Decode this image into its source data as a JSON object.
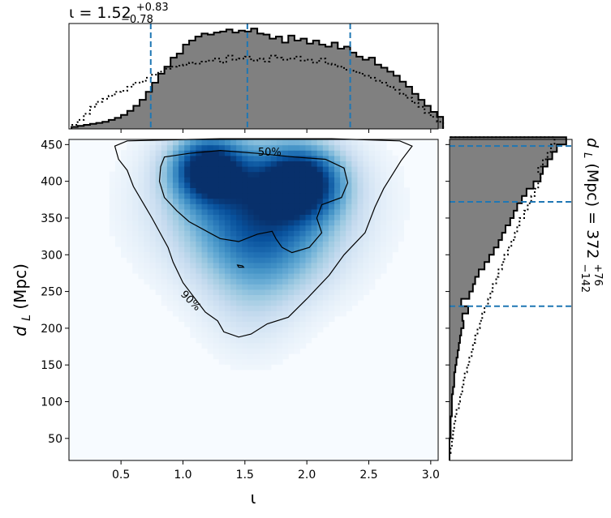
{
  "chart_data": [
    {
      "id": "joint",
      "type": "heatmap",
      "xlabel": "ι",
      "ylabel_main": "d",
      "ylabel_sub": "L",
      "ylabel_unit": " (Mpc)",
      "xlim": [
        0.08,
        3.06
      ],
      "ylim": [
        20,
        457
      ],
      "xticks": [
        0.5,
        1.0,
        1.5,
        2.0,
        2.5,
        3.0
      ],
      "xtick_labels": [
        "0.5",
        "1.0",
        "1.5",
        "2.0",
        "2.5",
        "3.0"
      ],
      "yticks": [
        50,
        100,
        150,
        200,
        250,
        300,
        350,
        400,
        450
      ],
      "ytick_labels": [
        "50",
        "100",
        "150",
        "200",
        "250",
        "300",
        "350",
        "400",
        "450"
      ],
      "colormap": "Blues",
      "density_blobs": [
        {
          "x": 1.2,
          "y": 418,
          "sx": 0.2,
          "sy": 30,
          "w": 1.0
        },
        {
          "x": 1.95,
          "y": 400,
          "sx": 0.22,
          "sy": 32,
          "w": 0.95
        },
        {
          "x": 1.6,
          "y": 370,
          "sx": 0.45,
          "sy": 55,
          "w": 0.75
        },
        {
          "x": 1.65,
          "y": 300,
          "sx": 0.35,
          "sy": 45,
          "w": 0.35
        },
        {
          "x": 1.55,
          "y": 230,
          "sx": 0.25,
          "sy": 45,
          "w": 0.12
        }
      ],
      "contours": [
        {
          "label": "50%",
          "points": [
            [
              1.05,
              438
            ],
            [
              1.3,
              442
            ],
            [
              1.6,
              438
            ],
            [
              1.9,
              433
            ],
            [
              2.15,
              430
            ],
            [
              2.3,
              418
            ],
            [
              2.33,
              398
            ],
            [
              2.28,
              378
            ],
            [
              2.12,
              368
            ],
            [
              2.08,
              350
            ],
            [
              2.12,
              330
            ],
            [
              2.02,
              310
            ],
            [
              1.88,
              303
            ],
            [
              1.8,
              310
            ],
            [
              1.75,
              322
            ],
            [
              1.72,
              332
            ],
            [
              1.6,
              328
            ],
            [
              1.45,
              318
            ],
            [
              1.3,
              322
            ],
            [
              1.05,
              345
            ],
            [
              0.95,
              360
            ],
            [
              0.85,
              378
            ],
            [
              0.81,
              400
            ],
            [
              0.82,
              420
            ],
            [
              0.85,
              433
            ]
          ]
        },
        {
          "label": "90%",
          "points": [
            [
              0.45,
              448
            ],
            [
              0.55,
              455
            ],
            [
              1.3,
              458
            ],
            [
              2.2,
              458
            ],
            [
              2.75,
              455
            ],
            [
              2.85,
              448
            ],
            [
              2.76,
              428
            ],
            [
              2.62,
              390
            ],
            [
              2.55,
              365
            ],
            [
              2.47,
              330
            ],
            [
              2.3,
              300
            ],
            [
              2.18,
              272
            ],
            [
              2.0,
              240
            ],
            [
              1.85,
              215
            ],
            [
              1.68,
              206
            ],
            [
              1.55,
              192
            ],
            [
              1.45,
              188
            ],
            [
              1.33,
              195
            ],
            [
              1.28,
              210
            ],
            [
              1.18,
              222
            ],
            [
              1.0,
              262
            ],
            [
              0.92,
              290
            ],
            [
              0.88,
              310
            ],
            [
              0.75,
              350
            ],
            [
              0.6,
              393
            ],
            [
              0.55,
              415
            ],
            [
              0.48,
              430
            ]
          ]
        },
        {
          "label": "",
          "points": [
            [
              1.44,
              286
            ],
            [
              1.48,
              285
            ],
            [
              1.49,
              283
            ],
            [
              1.45,
              283
            ]
          ]
        }
      ],
      "contour_label_positions": {
        "50%": [
          1.7,
          439
        ],
        "90%": [
          1.06,
          237
        ]
      },
      "contour_label_rotations": {
        "50%": 0,
        "90%": 45
      }
    },
    {
      "id": "iota-marginal",
      "type": "histogram",
      "title_value": "ι = 1.52",
      "title_plus": "+0.83",
      "title_minus": "−0.78",
      "xlim": [
        0.08,
        3.06
      ],
      "ylim": [
        0,
        1.05
      ],
      "bins_start": 0.1,
      "bin_width": 0.05,
      "posterior": [
        0.02,
        0.03,
        0.04,
        0.05,
        0.06,
        0.07,
        0.09,
        0.11,
        0.14,
        0.18,
        0.23,
        0.29,
        0.37,
        0.46,
        0.55,
        0.62,
        0.71,
        0.75,
        0.84,
        0.88,
        0.92,
        0.95,
        0.94,
        0.96,
        0.97,
        0.99,
        0.96,
        0.98,
        0.97,
        1.0,
        0.95,
        0.94,
        0.9,
        0.92,
        0.86,
        0.93,
        0.88,
        0.9,
        0.85,
        0.88,
        0.84,
        0.82,
        0.86,
        0.8,
        0.82,
        0.76,
        0.72,
        0.69,
        0.71,
        0.64,
        0.61,
        0.57,
        0.53,
        0.47,
        0.42,
        0.35,
        0.29,
        0.23,
        0.17,
        0.12
      ],
      "prior": [
        0.04,
        0.09,
        0.15,
        0.22,
        0.27,
        0.3,
        0.33,
        0.37,
        0.38,
        0.42,
        0.46,
        0.47,
        0.51,
        0.54,
        0.57,
        0.6,
        0.62,
        0.63,
        0.64,
        0.66,
        0.65,
        0.67,
        0.68,
        0.7,
        0.66,
        0.73,
        0.69,
        0.7,
        0.72,
        0.68,
        0.7,
        0.67,
        0.73,
        0.71,
        0.69,
        0.7,
        0.72,
        0.68,
        0.69,
        0.66,
        0.7,
        0.65,
        0.64,
        0.62,
        0.59,
        0.58,
        0.56,
        0.53,
        0.51,
        0.48,
        0.46,
        0.42,
        0.39,
        0.35,
        0.31,
        0.26,
        0.22,
        0.16,
        0.12,
        0.07
      ],
      "quantile_lines": [
        0.74,
        1.52,
        2.35
      ]
    },
    {
      "id": "distance-marginal",
      "type": "histogram",
      "orientation": "horizontal",
      "label_main": "d",
      "label_sub": "L",
      "label_rest": " (Mpc) = 372",
      "label_plus": "+76",
      "label_minus": "−142",
      "ylim": [
        20,
        457
      ],
      "xlim": [
        0,
        1.05
      ],
      "bins_start": 20,
      "bin_width": 10,
      "posterior": [
        0.0,
        0.0,
        0.0,
        0.01,
        0.01,
        0.01,
        0.02,
        0.02,
        0.02,
        0.03,
        0.04,
        0.04,
        0.05,
        0.06,
        0.07,
        0.08,
        0.09,
        0.1,
        0.12,
        0.11,
        0.16,
        0.1,
        0.17,
        0.2,
        0.22,
        0.25,
        0.3,
        0.34,
        0.38,
        0.42,
        0.45,
        0.48,
        0.52,
        0.55,
        0.58,
        0.62,
        0.66,
        0.72,
        0.78,
        0.8,
        0.84,
        0.88,
        0.92,
        1.0
      ],
      "prior": [
        0.0,
        0.01,
        0.02,
        0.03,
        0.04,
        0.05,
        0.06,
        0.08,
        0.09,
        0.11,
        0.12,
        0.13,
        0.15,
        0.17,
        0.19,
        0.2,
        0.22,
        0.24,
        0.26,
        0.28,
        0.3,
        0.33,
        0.35,
        0.37,
        0.4,
        0.42,
        0.45,
        0.47,
        0.5,
        0.53,
        0.56,
        0.58,
        0.6,
        0.64,
        0.67,
        0.7,
        0.73,
        0.76,
        0.78,
        0.76,
        0.8,
        0.84,
        0.87,
        0.9
      ],
      "quantile_lines": [
        230,
        372,
        448
      ]
    }
  ],
  "colors": {
    "posterior_fill": "#808080",
    "posterior_edge": "#000000",
    "prior_line": "#000000",
    "quantile_line": "#1f77b4",
    "contour_line": "#000000"
  }
}
